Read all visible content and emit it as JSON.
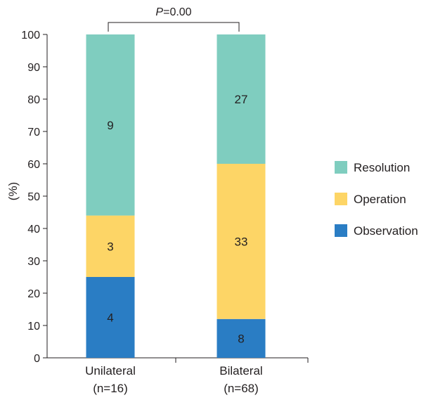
{
  "chart_data": {
    "type": "bar",
    "stacked": true,
    "ylabel": "(%)",
    "ylim": [
      0,
      100
    ],
    "yticks": [
      0,
      10,
      20,
      30,
      40,
      50,
      60,
      70,
      80,
      90,
      100
    ],
    "categories": [
      {
        "name": "Unilateral",
        "n": "(n=16)"
      },
      {
        "name": "Bilateral",
        "n": "(n=68)"
      }
    ],
    "series": [
      {
        "name": "Observation",
        "color": "#2a7dc4",
        "values": [
          25,
          12
        ],
        "counts": [
          "4",
          "8"
        ]
      },
      {
        "name": "Operation",
        "color": "#fdd566",
        "values": [
          19,
          48
        ],
        "counts": [
          "3",
          "33"
        ]
      },
      {
        "name": "Resolution",
        "color": "#7fcdbf",
        "values": [
          56,
          40
        ],
        "counts": [
          "9",
          "27"
        ]
      }
    ],
    "legend_order": [
      "Resolution",
      "Operation",
      "Observation"
    ],
    "legend_position": "right",
    "annotation": {
      "p_symbol": "P",
      "p_text": "=0.00"
    }
  }
}
